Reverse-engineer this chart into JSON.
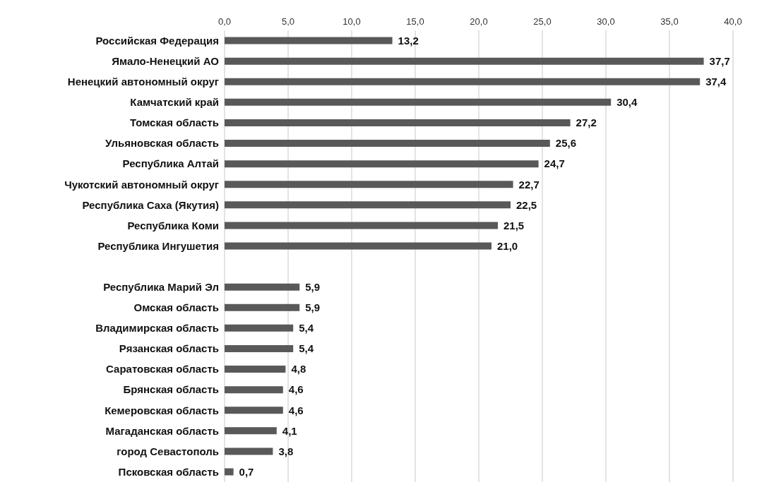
{
  "chart_data": {
    "type": "bar",
    "orientation": "horizontal",
    "categories": [
      "Российская Федерация",
      "Ямало-Ненецкий АО",
      "Ненецкий автономный округ",
      "Камчатский край",
      "Томская область",
      "Ульяновская область",
      "Республика Алтай",
      "Чукотский автономный округ",
      "Республика Саха (Якутия)",
      "Республика Коми",
      "Республика Ингушетия",
      null,
      "Республика Марий Эл",
      "Омская область",
      "Владимирская область",
      "Рязанская область",
      "Саратовская область",
      "Брянская область",
      "Кемеровская область",
      "Магаданская  область",
      "город Севастополь",
      "Псковская область"
    ],
    "values": [
      13.2,
      37.7,
      37.4,
      30.4,
      27.2,
      25.6,
      24.7,
      22.7,
      22.5,
      21.5,
      21.0,
      null,
      5.9,
      5.9,
      5.4,
      5.4,
      4.8,
      4.6,
      4.6,
      4.1,
      3.8,
      0.7
    ],
    "value_labels": [
      "13,2",
      "37,7",
      "37,4",
      "30,4",
      "27,2",
      "25,6",
      "24,7",
      "22,7",
      "22,5",
      "21,5",
      "21,0",
      null,
      "5,9",
      "5,9",
      "5,4",
      "5,4",
      "4,8",
      "4,6",
      "4,6",
      "4,1",
      "3,8",
      "0,7"
    ],
    "color": "#595959",
    "xlim": [
      0,
      40
    ],
    "xticks": [
      {
        "value": 0,
        "label": "0,0"
      },
      {
        "value": 5,
        "label": "5,0"
      },
      {
        "value": 10,
        "label": "10,0"
      },
      {
        "value": 15,
        "label": "15,0"
      },
      {
        "value": 20,
        "label": "20,0"
      },
      {
        "value": 25,
        "label": "25,0"
      },
      {
        "value": 30,
        "label": "30,0"
      },
      {
        "value": 35,
        "label": "35,0"
      },
      {
        "value": 40,
        "label": "40,0"
      }
    ],
    "grid": "x"
  }
}
